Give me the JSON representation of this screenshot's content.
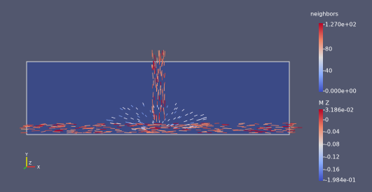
{
  "legends": [
    {
      "title": "neighbors",
      "labels": [
        "1.270e+02",
        "80",
        "40",
        "0.000e+00"
      ]
    },
    {
      "title": "M Z",
      "labels": [
        "3.186e-02",
        "0",
        "-0.04",
        "-0.08",
        "-0.12",
        "-0.16",
        "-1.984e-01"
      ]
    }
  ],
  "axes": {
    "y": "Y",
    "z": "Z",
    "x": "X"
  }
}
